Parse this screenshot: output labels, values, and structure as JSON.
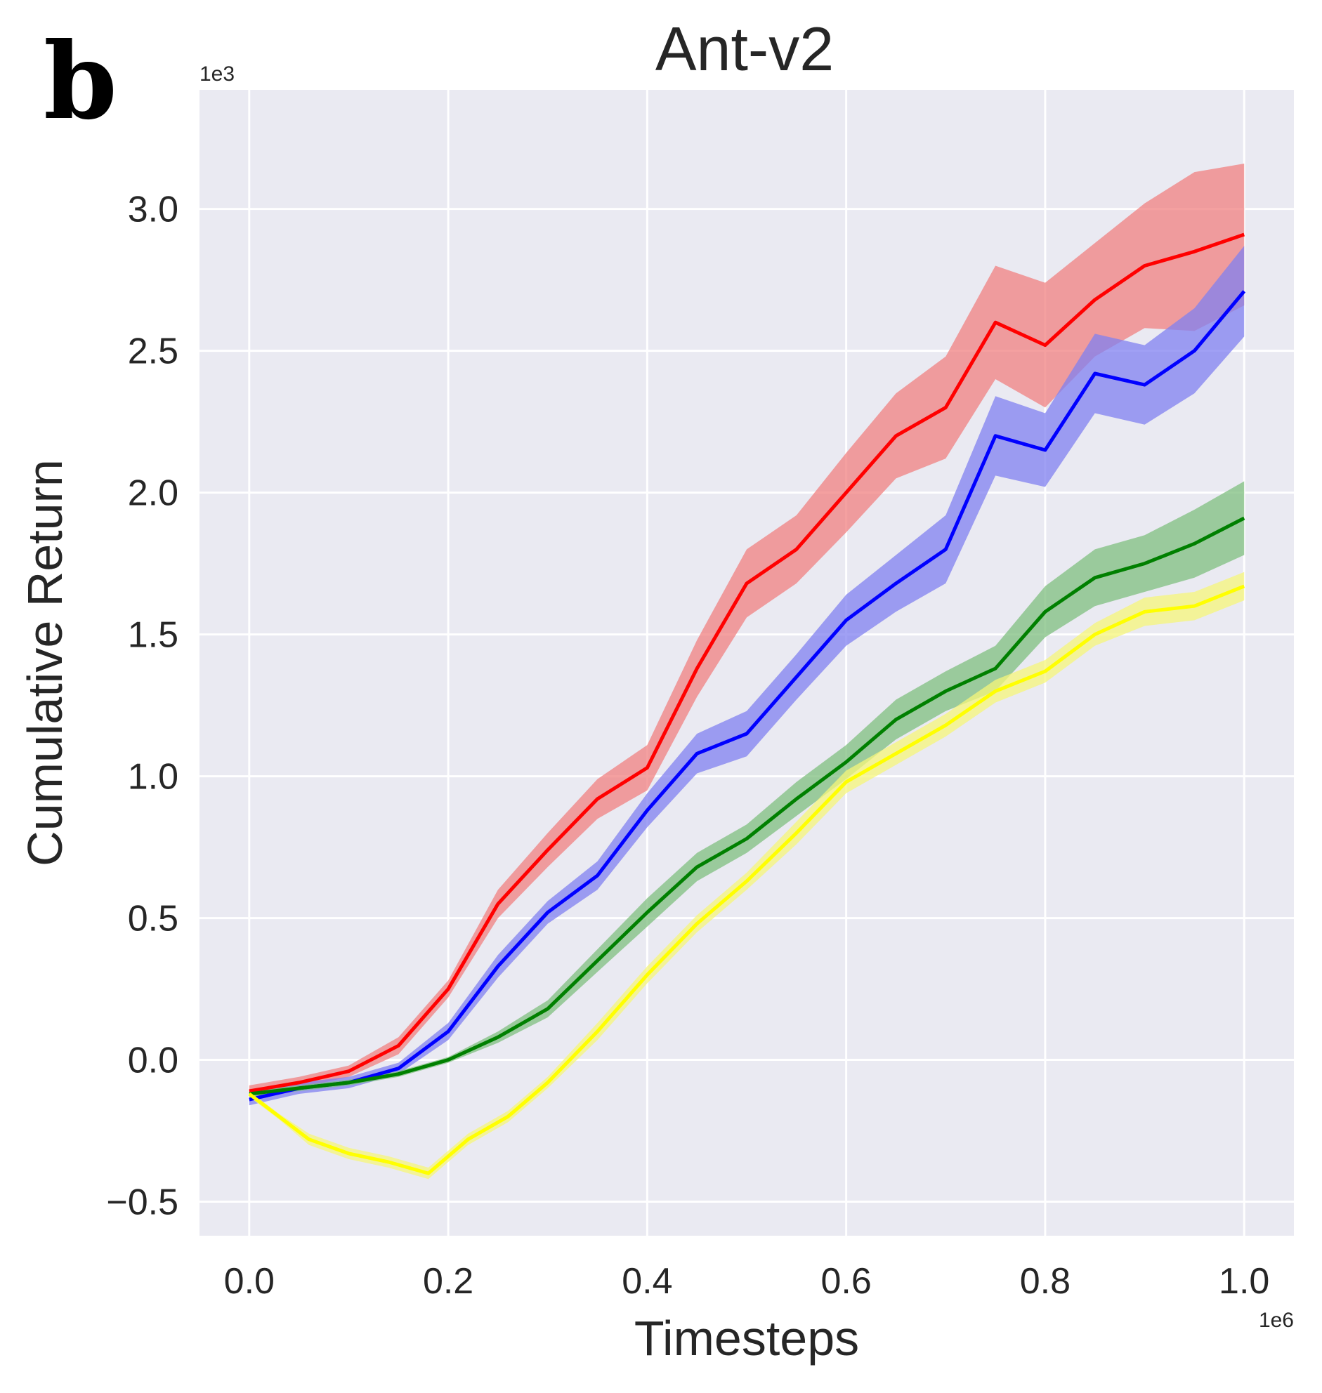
{
  "panel_label": "b",
  "chart_data": {
    "type": "line",
    "title": "Ant-v2",
    "xlabel": "Timesteps",
    "ylabel": "Cumulative Return",
    "x_offset_label": "1e6",
    "y_offset_label": "1e3",
    "xlim": [
      -0.05,
      1.05
    ],
    "ylim": [
      -0.62,
      3.42
    ],
    "xticks": [
      0.0,
      0.2,
      0.4,
      0.6,
      0.8,
      1.0
    ],
    "xtick_labels": [
      "0.0",
      "0.2",
      "0.4",
      "0.6",
      "0.8",
      "1.0"
    ],
    "yticks": [
      -0.5,
      0.0,
      0.5,
      1.0,
      1.5,
      2.0,
      2.5,
      3.0
    ],
    "ytick_labels": [
      "−0.5",
      "0.0",
      "0.5",
      "1.0",
      "1.5",
      "2.0",
      "2.5",
      "3.0"
    ],
    "grid": true,
    "background": "#eaeaf2",
    "series": [
      {
        "name": "red",
        "color": "#ff0000",
        "band_color": "#f08080",
        "x": [
          0.0,
          0.05,
          0.1,
          0.15,
          0.2,
          0.25,
          0.3,
          0.35,
          0.4,
          0.45,
          0.5,
          0.55,
          0.6,
          0.65,
          0.7,
          0.75,
          0.8,
          0.85,
          0.9,
          0.95,
          1.0
        ],
        "y": [
          -0.11,
          -0.08,
          -0.04,
          0.05,
          0.25,
          0.55,
          0.74,
          0.92,
          1.03,
          1.38,
          1.68,
          1.8,
          2.0,
          2.2,
          2.3,
          2.6,
          2.52,
          2.68,
          2.8,
          2.85,
          2.91
        ],
        "err": [
          0.02,
          0.02,
          0.02,
          0.03,
          0.03,
          0.05,
          0.06,
          0.07,
          0.08,
          0.1,
          0.12,
          0.12,
          0.14,
          0.15,
          0.18,
          0.2,
          0.22,
          0.2,
          0.22,
          0.28,
          0.25
        ]
      },
      {
        "name": "blue",
        "color": "#0000ff",
        "band_color": "#8080f0",
        "x": [
          0.0,
          0.05,
          0.1,
          0.15,
          0.2,
          0.25,
          0.3,
          0.35,
          0.4,
          0.45,
          0.5,
          0.55,
          0.6,
          0.65,
          0.7,
          0.75,
          0.8,
          0.85,
          0.9,
          0.95,
          1.0
        ],
        "y": [
          -0.14,
          -0.1,
          -0.08,
          -0.03,
          0.1,
          0.33,
          0.52,
          0.65,
          0.88,
          1.08,
          1.15,
          1.35,
          1.55,
          1.68,
          1.8,
          2.2,
          2.15,
          2.42,
          2.38,
          2.5,
          2.71
        ],
        "err": [
          0.02,
          0.02,
          0.02,
          0.02,
          0.03,
          0.04,
          0.04,
          0.05,
          0.06,
          0.07,
          0.08,
          0.08,
          0.09,
          0.1,
          0.12,
          0.14,
          0.13,
          0.14,
          0.14,
          0.15,
          0.16
        ]
      },
      {
        "name": "green",
        "color": "#008000",
        "band_color": "#7fbf7f",
        "x": [
          0.0,
          0.05,
          0.1,
          0.15,
          0.2,
          0.25,
          0.3,
          0.35,
          0.4,
          0.45,
          0.5,
          0.55,
          0.6,
          0.65,
          0.7,
          0.75,
          0.8,
          0.85,
          0.9,
          0.95,
          1.0
        ],
        "y": [
          -0.12,
          -0.1,
          -0.08,
          -0.05,
          0.0,
          0.08,
          0.18,
          0.35,
          0.52,
          0.68,
          0.78,
          0.92,
          1.05,
          1.2,
          1.3,
          1.38,
          1.58,
          1.7,
          1.75,
          1.82,
          1.91
        ],
        "err": [
          0.01,
          0.01,
          0.01,
          0.01,
          0.01,
          0.02,
          0.03,
          0.04,
          0.05,
          0.05,
          0.05,
          0.06,
          0.06,
          0.07,
          0.07,
          0.08,
          0.09,
          0.1,
          0.1,
          0.12,
          0.13
        ]
      },
      {
        "name": "yellow",
        "color": "#ffff00",
        "band_color": "#f5f57a",
        "x": [
          0.0,
          0.03,
          0.06,
          0.1,
          0.14,
          0.18,
          0.22,
          0.26,
          0.3,
          0.35,
          0.4,
          0.45,
          0.5,
          0.55,
          0.6,
          0.65,
          0.7,
          0.75,
          0.8,
          0.85,
          0.9,
          0.95,
          1.0
        ],
        "y": [
          -0.12,
          -0.2,
          -0.28,
          -0.33,
          -0.36,
          -0.4,
          -0.28,
          -0.2,
          -0.08,
          0.1,
          0.3,
          0.48,
          0.63,
          0.8,
          0.98,
          1.08,
          1.18,
          1.3,
          1.37,
          1.5,
          1.58,
          1.6,
          1.67
        ],
        "err": [
          0.01,
          0.01,
          0.02,
          0.02,
          0.02,
          0.02,
          0.02,
          0.02,
          0.02,
          0.03,
          0.03,
          0.03,
          0.03,
          0.04,
          0.04,
          0.04,
          0.04,
          0.04,
          0.04,
          0.04,
          0.05,
          0.05,
          0.05
        ]
      }
    ]
  }
}
